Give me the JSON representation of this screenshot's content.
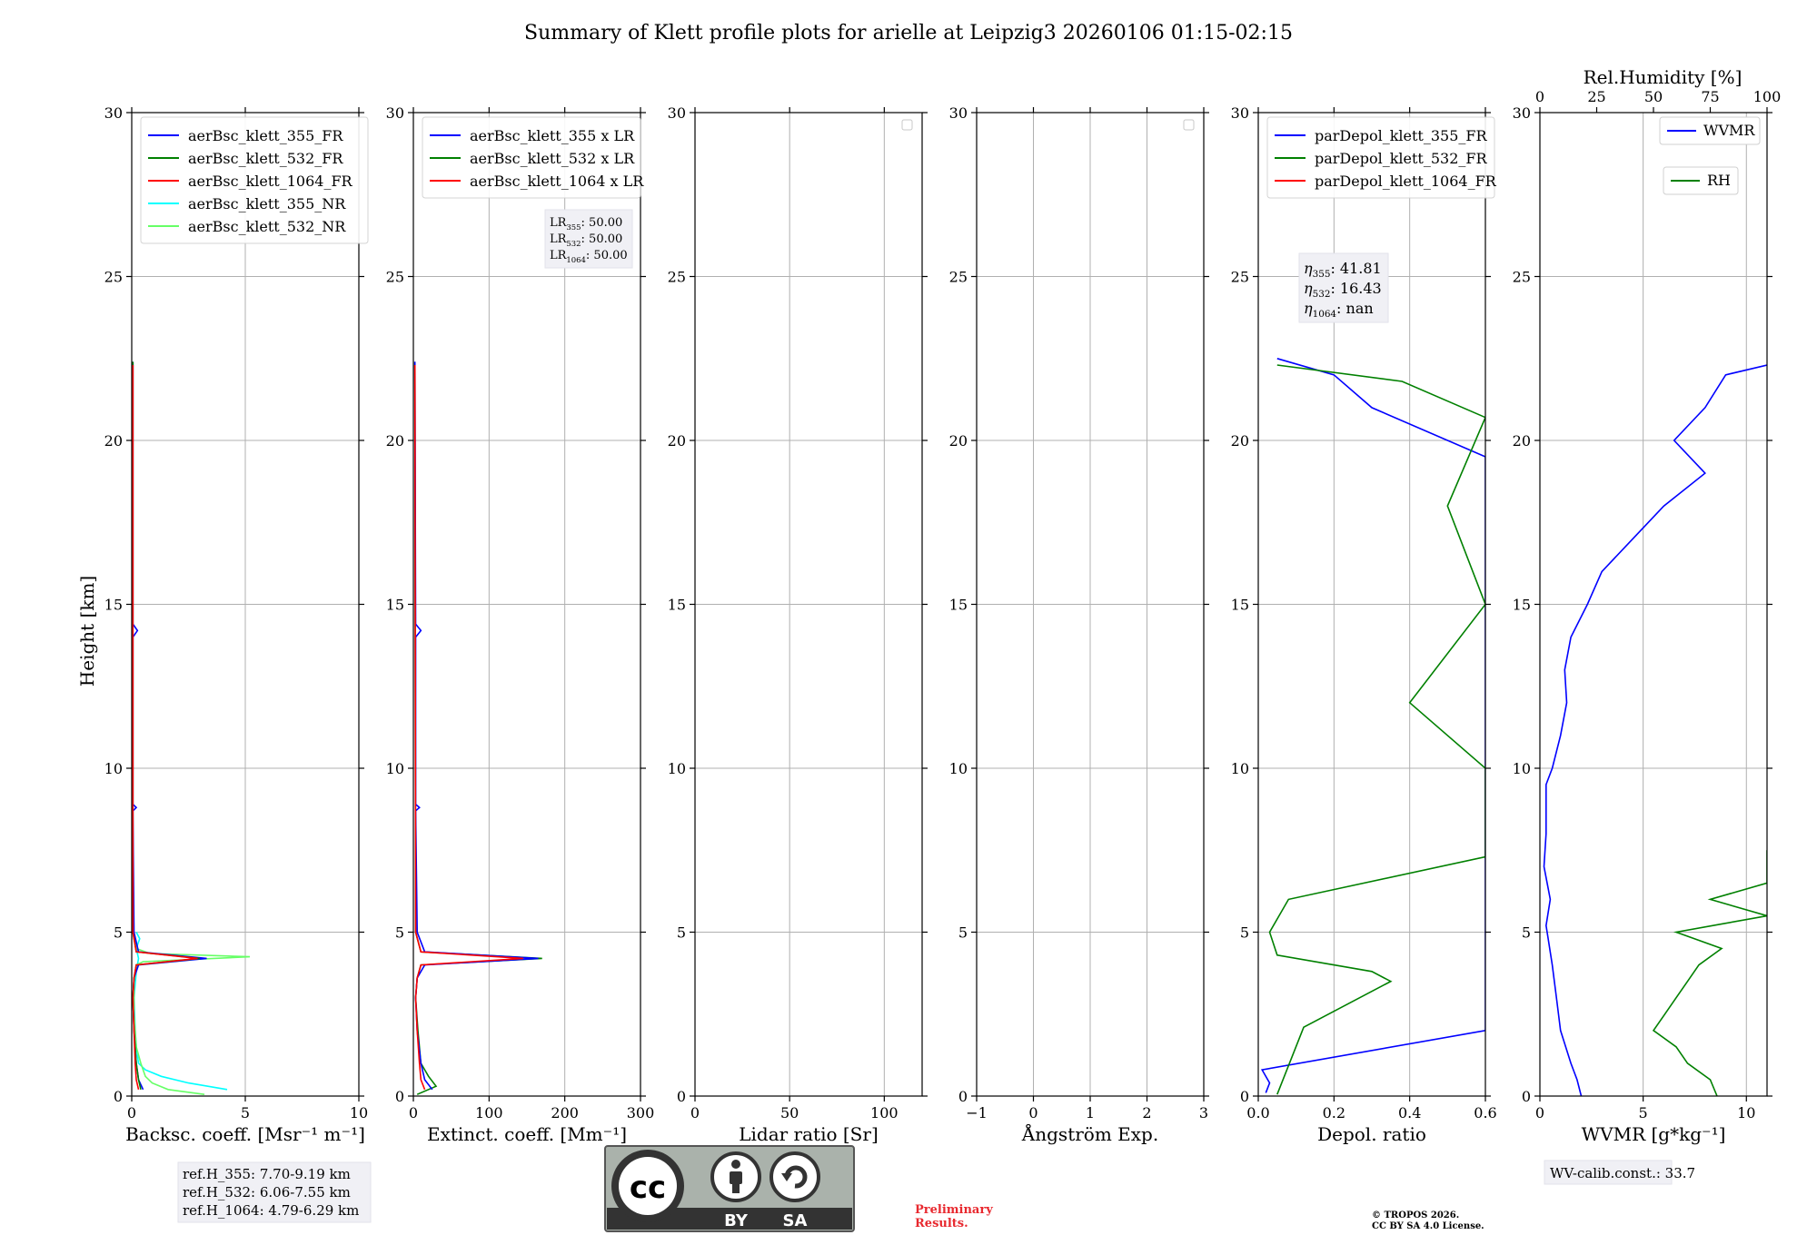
{
  "title": "Summary of Klett profile plots for arielle at Leipzig3 20260106 01:15-02:15",
  "y_axis": {
    "label": "Height [km]",
    "ylim": [
      0,
      30
    ],
    "ticks": [
      0,
      5,
      10,
      15,
      20,
      25,
      30
    ]
  },
  "chart_data": [
    {
      "id": "backscatter",
      "type": "line",
      "xlabel": "Backsc. coeff. [Msr⁻¹ m⁻¹]",
      "xlim": [
        0,
        10
      ],
      "xticks": [
        0,
        5,
        10
      ],
      "xtick_labels": [
        "0",
        "5",
        "10"
      ],
      "legend": {
        "position": "top-left",
        "entries": [
          {
            "name": "aerBsc_klett_355_FR",
            "color": "#0000ff"
          },
          {
            "name": "aerBsc_klett_532_FR",
            "color": "#008000"
          },
          {
            "name": "aerBsc_klett_1064_FR",
            "color": "#ff0000"
          },
          {
            "name": "aerBsc_klett_355_NR",
            "color": "#00ffff"
          },
          {
            "name": "aerBsc_klett_532_NR",
            "color": "#66ff66"
          }
        ]
      },
      "series": [
        {
          "name": "aerBsc_klett_355_NR",
          "color": "#00ffff",
          "points": [
            [
              4.2,
              0.2
            ],
            [
              2.5,
              0.4
            ],
            [
              1.3,
              0.6
            ],
            [
              0.6,
              0.8
            ],
            [
              0.3,
              1.0
            ],
            [
              0.2,
              1.5
            ],
            [
              0.15,
              2.0
            ],
            [
              0.1,
              3.0
            ],
            [
              0.2,
              3.8
            ],
            [
              0.3,
              4.2
            ],
            [
              0.2,
              4.5
            ],
            [
              0.35,
              4.8
            ],
            [
              0.2,
              5.0
            ]
          ]
        },
        {
          "name": "aerBsc_klett_532_NR",
          "color": "#66ff66",
          "points": [
            [
              3.2,
              0.05
            ],
            [
              1.6,
              0.2
            ],
            [
              0.9,
              0.4
            ],
            [
              0.6,
              0.6
            ],
            [
              0.4,
              1.0
            ],
            [
              0.2,
              1.5
            ],
            [
              0.1,
              2.5
            ],
            [
              0.1,
              3.5
            ],
            [
              0.2,
              4.0
            ],
            [
              0.5,
              4.1
            ],
            [
              5.2,
              4.25
            ],
            [
              0.8,
              4.35
            ],
            [
              0.2,
              4.5
            ],
            [
              0.1,
              5.0
            ]
          ]
        },
        {
          "name": "aerBsc_klett_355_FR",
          "color": "#0000ff",
          "points": [
            [
              0.5,
              0.2
            ],
            [
              0.3,
              0.5
            ],
            [
              0.2,
              1.0
            ],
            [
              0.1,
              2.0
            ],
            [
              0.05,
              3.0
            ],
            [
              0.1,
              3.6
            ],
            [
              0.3,
              4.0
            ],
            [
              3.3,
              4.2
            ],
            [
              0.3,
              4.4
            ],
            [
              0.1,
              5.0
            ],
            [
              0.05,
              8.7
            ],
            [
              0.2,
              8.8
            ],
            [
              0.05,
              8.9
            ],
            [
              0.05,
              14.0
            ],
            [
              0.25,
              14.2
            ],
            [
              0.05,
              14.4
            ],
            [
              0.05,
              22.4
            ]
          ]
        },
        {
          "name": "aerBsc_klett_532_FR",
          "color": "#008000",
          "points": [
            [
              0.4,
              0.2
            ],
            [
              0.3,
              0.5
            ],
            [
              0.2,
              1.0
            ],
            [
              0.1,
              2.0
            ],
            [
              0.05,
              3.0
            ],
            [
              0.1,
              3.6
            ],
            [
              0.2,
              4.0
            ],
            [
              3.0,
              4.2
            ],
            [
              0.2,
              4.4
            ],
            [
              0.05,
              5.0
            ],
            [
              0.05,
              22.4
            ]
          ]
        },
        {
          "name": "aerBsc_klett_1064_FR",
          "color": "#ff0000",
          "points": [
            [
              0.3,
              0.2
            ],
            [
              0.2,
              0.5
            ],
            [
              0.15,
              1.0
            ],
            [
              0.1,
              2.0
            ],
            [
              0.05,
              3.0
            ],
            [
              0.1,
              3.6
            ],
            [
              0.2,
              4.0
            ],
            [
              2.9,
              4.2
            ],
            [
              0.2,
              4.4
            ],
            [
              0.05,
              5.0
            ],
            [
              0.05,
              22.3
            ]
          ]
        }
      ],
      "annotation": [
        "ref.H_355: 7.70-9.19 km",
        "ref.H_532: 6.06-7.55 km",
        "ref.H_1064: 4.79-6.29 km"
      ]
    },
    {
      "id": "extinction",
      "type": "line",
      "xlabel": "Extinct. coeff. [Mm⁻¹]",
      "xlim": [
        0,
        300
      ],
      "xticks": [
        0,
        100,
        200,
        300
      ],
      "xtick_labels": [
        "0",
        "100",
        "200",
        "300"
      ],
      "legend": {
        "position": "top-left",
        "entries": [
          {
            "name": "aerBsc_klett_355 x LR",
            "color": "#0000ff"
          },
          {
            "name": "aerBsc_klett_532 x LR",
            "color": "#008000"
          },
          {
            "name": "aerBsc_klett_1064 x LR",
            "color": "#ff0000"
          }
        ]
      },
      "series": [
        {
          "name": "aerBsc_klett_532 x LR",
          "color": "#008000",
          "points": [
            [
              5,
              0.05
            ],
            [
              30,
              0.3
            ],
            [
              20,
              0.6
            ],
            [
              10,
              1.0
            ],
            [
              6,
              2.0
            ],
            [
              3,
              3.0
            ],
            [
              5,
              3.6
            ],
            [
              10,
              4.0
            ],
            [
              170,
              4.2
            ],
            [
              10,
              4.4
            ],
            [
              3,
              5.0
            ],
            [
              2,
              22.4
            ]
          ]
        },
        {
          "name": "aerBsc_klett_355 x LR",
          "color": "#0000ff",
          "points": [
            [
              25,
              0.2
            ],
            [
              15,
              0.5
            ],
            [
              10,
              1.0
            ],
            [
              5,
              2.0
            ],
            [
              3,
              3.0
            ],
            [
              5,
              3.6
            ],
            [
              15,
              4.0
            ],
            [
              165,
              4.2
            ],
            [
              15,
              4.4
            ],
            [
              5,
              5.0
            ],
            [
              3,
              8.7
            ],
            [
              8,
              8.8
            ],
            [
              3,
              8.9
            ],
            [
              3,
              14.0
            ],
            [
              10,
              14.2
            ],
            [
              3,
              14.4
            ],
            [
              2,
              22.4
            ]
          ]
        },
        {
          "name": "aerBsc_klett_1064 x LR",
          "color": "#ff0000",
          "points": [
            [
              15,
              0.2
            ],
            [
              10,
              0.5
            ],
            [
              8,
              1.0
            ],
            [
              5,
              2.0
            ],
            [
              3,
              3.0
            ],
            [
              5,
              3.6
            ],
            [
              10,
              4.0
            ],
            [
              145,
              4.2
            ],
            [
              10,
              4.4
            ],
            [
              3,
              5.0
            ],
            [
              2,
              22.3
            ]
          ]
        }
      ],
      "annotation": [
        {
          "label": "LR",
          "sub": "355",
          "value": ": 50.00"
        },
        {
          "label": "LR",
          "sub": "532",
          "value": ": 50.00"
        },
        {
          "label": "LR",
          "sub": "1064",
          "value": ": 50.00"
        }
      ]
    },
    {
      "id": "lidar-ratio",
      "type": "line",
      "xlabel": "Lidar ratio [Sr]",
      "xlim": [
        0,
        120
      ],
      "xticks": [
        0,
        50,
        100
      ],
      "xtick_labels": [
        "0",
        "50",
        "100"
      ],
      "legend": {
        "position": "top-right",
        "entries": []
      },
      "series": []
    },
    {
      "id": "angstrom",
      "type": "line",
      "xlabel": "Ångström Exp.",
      "xlim": [
        -1,
        3
      ],
      "xticks": [
        -1,
        0,
        1,
        2,
        3
      ],
      "xtick_labels": [
        "−1",
        "0",
        "1",
        "2",
        "3"
      ],
      "legend": {
        "position": "top-right",
        "entries": []
      },
      "series": []
    },
    {
      "id": "depol",
      "type": "line",
      "xlabel": "Depol. ratio",
      "xlim": [
        0,
        0.6
      ],
      "xticks": [
        0,
        0.2,
        0.4,
        0.6
      ],
      "xtick_labels": [
        "0.0",
        "0.2",
        "0.4",
        "0.6"
      ],
      "legend": {
        "position": "top-left",
        "entries": [
          {
            "name": "parDepol_klett_355_FR",
            "color": "#0000ff"
          },
          {
            "name": "parDepol_klett_532_FR",
            "color": "#008000"
          },
          {
            "name": "parDepol_klett_1064_FR",
            "color": "#ff0000"
          }
        ]
      },
      "series": [
        {
          "name": "parDepol_klett_355_FR",
          "color": "#0000ff",
          "points": [
            [
              0.02,
              0.1
            ],
            [
              0.03,
              0.4
            ],
            [
              0.01,
              0.8
            ],
            [
              0.6,
              2.0
            ],
            [
              0.6,
              3.7
            ],
            [
              0.6,
              4.0
            ],
            [
              0.6,
              5.2
            ],
            [
              0.6,
              5.8
            ],
            [
              0.6,
              6.5
            ],
            [
              0.6,
              7.5
            ],
            [
              0.6,
              10.0
            ],
            [
              0.6,
              12.0
            ],
            [
              0.6,
              15.0
            ],
            [
              0.6,
              17.0
            ],
            [
              0.6,
              19.5
            ],
            [
              0.3,
              21.0
            ],
            [
              0.2,
              22.0
            ],
            [
              0.05,
              22.5
            ]
          ]
        },
        {
          "name": "parDepol_klett_532_FR",
          "color": "#008000",
          "points": [
            [
              0.05,
              0.05
            ],
            [
              0.12,
              2.1
            ],
            [
              0.35,
              3.5
            ],
            [
              0.3,
              3.8
            ],
            [
              0.05,
              4.3
            ],
            [
              0.03,
              5.0
            ],
            [
              0.08,
              6.0
            ],
            [
              0.6,
              7.3
            ],
            [
              0.6,
              10.0
            ],
            [
              0.4,
              12.0
            ],
            [
              0.6,
              15.0
            ],
            [
              0.5,
              18.0
            ],
            [
              0.6,
              20.7
            ],
            [
              0.38,
              21.8
            ],
            [
              0.05,
              22.3
            ]
          ]
        }
      ],
      "annotation": [
        {
          "label": "η",
          "sub": "355",
          "value": ": 41.81"
        },
        {
          "label": "η",
          "sub": "532",
          "value": ": 16.43"
        },
        {
          "label": "η",
          "sub": "1064",
          "value": ": nan"
        }
      ]
    },
    {
      "id": "wvmr",
      "type": "line",
      "xlabel": "WVMR [g*kg⁻¹]",
      "xlim": [
        0,
        11
      ],
      "xticks": [
        0,
        5,
        10
      ],
      "xtick_labels": [
        "0",
        "5",
        "10"
      ],
      "top_axis": {
        "label": "Rel.Humidity [%]",
        "xlim": [
          0,
          100
        ],
        "ticks": [
          0,
          25,
          50,
          75,
          100
        ],
        "tick_labels": [
          "0",
          "25",
          "50",
          "75",
          "100"
        ]
      },
      "legend": {
        "position": "top-right",
        "entries": [
          {
            "name": "WVMR",
            "color": "#0000ff"
          },
          {
            "name": "RH",
            "color": "#008000"
          }
        ]
      },
      "series": [
        {
          "name": "WVMR",
          "color": "#0000ff",
          "axis": "bottom",
          "points": [
            [
              2.0,
              0.0
            ],
            [
              1.8,
              0.5
            ],
            [
              1.5,
              1.0
            ],
            [
              1.0,
              2.0
            ],
            [
              0.8,
              3.0
            ],
            [
              0.6,
              4.0
            ],
            [
              0.4,
              4.8
            ],
            [
              0.3,
              5.2
            ],
            [
              0.5,
              6.0
            ],
            [
              0.2,
              7.0
            ],
            [
              0.3,
              8.0
            ],
            [
              0.3,
              9.5
            ],
            [
              0.6,
              10.0
            ],
            [
              1.0,
              11.0
            ],
            [
              1.3,
              12.0
            ],
            [
              1.2,
              13.0
            ],
            [
              1.5,
              14.0
            ],
            [
              2.3,
              15.0
            ],
            [
              3.0,
              16.0
            ],
            [
              4.5,
              17.0
            ],
            [
              6.0,
              18.0
            ],
            [
              8.0,
              19.0
            ],
            [
              6.5,
              20.0
            ],
            [
              8.0,
              21.0
            ],
            [
              9.0,
              22.0
            ],
            [
              11.0,
              22.3
            ]
          ]
        },
        {
          "name": "RH",
          "color": "#008000",
          "axis": "top",
          "points": [
            [
              78,
              0.0
            ],
            [
              75,
              0.5
            ],
            [
              65,
              1.0
            ],
            [
              60,
              1.5
            ],
            [
              50,
              2.0
            ],
            [
              55,
              2.5
            ],
            [
              60,
              3.0
            ],
            [
              65,
              3.5
            ],
            [
              70,
              4.0
            ],
            [
              80,
              4.5
            ],
            [
              60,
              5.0
            ],
            [
              100,
              5.5
            ],
            [
              75,
              6.0
            ],
            [
              100,
              6.5
            ],
            [
              100,
              7.0
            ],
            [
              100,
              7.5
            ]
          ]
        }
      ],
      "annotation": [
        "WV-calib.const.: 33.7"
      ]
    }
  ],
  "footer": {
    "license_badge": {
      "logo_text": "cc",
      "by_label": "BY",
      "sa_label": "SA"
    },
    "preliminary": [
      "Preliminary",
      "Results."
    ],
    "copyright": [
      "© TROPOS 2026.",
      "CC BY SA 4.0 License."
    ]
  },
  "colors": {
    "blue": "#0000ff",
    "green": "#008000",
    "red": "#ff0000",
    "cyan": "#00ffff",
    "lightgreen": "#66ff66",
    "preliminary": "#e8292f",
    "badge_bg": "#aab2ab",
    "badge_bar": "#333333"
  }
}
